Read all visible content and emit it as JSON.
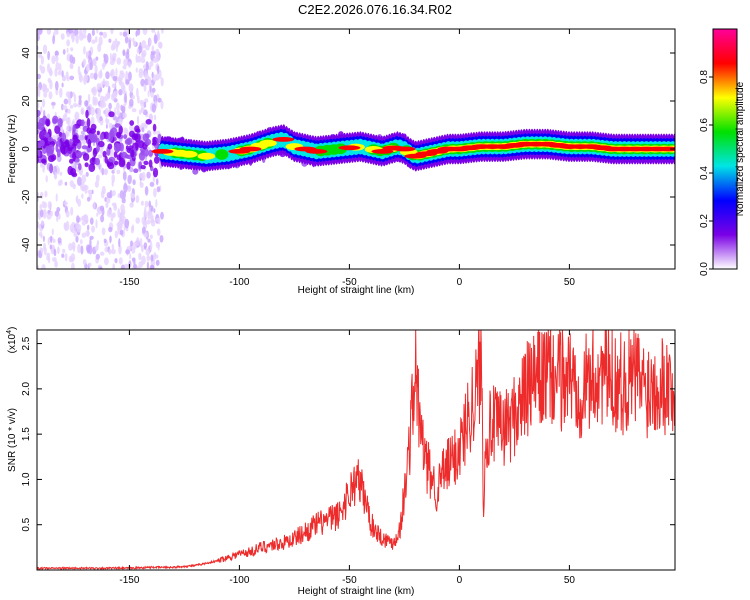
{
  "title": "C2E2.2026.076.16.34.R02",
  "chart_data": [
    {
      "type": "heatmap",
      "xlabel": "Height of straight line (km)",
      "ylabel": "Frequency (Hz)",
      "xlim": [
        -192,
        98
      ],
      "ylim": [
        -50,
        50
      ],
      "xticks": [
        -150,
        -100,
        -50,
        0,
        50
      ],
      "yticks": [
        -40,
        -20,
        0,
        20,
        40
      ],
      "colorbar": {
        "label": "Normalized spectral amplitude",
        "range": [
          0.0,
          1.0
        ],
        "ticks": [
          0.0,
          0.2,
          0.4,
          0.6,
          0.8
        ],
        "colormap": [
          "#ffffff",
          "#7a00e6",
          "#0000ff",
          "#00e5e5",
          "#00e000",
          "#ffff00",
          "#ff0000",
          "#ff0099"
        ]
      },
      "ridge": {
        "x": [
          -192,
          -170,
          -150,
          -135,
          -125,
          -115,
          -105,
          -95,
          -85,
          -80,
          -75,
          -65,
          -55,
          -45,
          -35,
          -28,
          -25,
          -22,
          -20,
          -15,
          -10,
          -5,
          0,
          10,
          20,
          30,
          40,
          50,
          60,
          70,
          80,
          90,
          98
        ],
        "y": [
          3,
          2,
          2,
          -1,
          -2,
          -3,
          -2,
          0,
          3,
          4,
          1,
          -1,
          0,
          1,
          -1,
          1,
          0,
          -2,
          -3,
          -2,
          -1,
          0,
          0,
          1,
          1,
          2,
          2,
          1,
          1,
          0,
          0,
          0,
          0
        ]
      }
    },
    {
      "type": "line",
      "xlabel": "Height of straight line (km)",
      "ylabel": "SNR (10 * v/v)",
      "multiplier_label": "(x10",
      "multiplier_exp": "4",
      "multiplier_close": ")",
      "color": "#ee2b2b",
      "xlim": [
        -192,
        98
      ],
      "ylim": [
        0,
        2.65
      ],
      "xticks": [
        -150,
        -100,
        -50,
        0,
        50
      ],
      "yticks": [
        0.5,
        1.0,
        1.5,
        2.0,
        2.5
      ],
      "series": [
        {
          "x": [
            -192,
            -180,
            -170,
            -160,
            -150,
            -140,
            -130,
            -120,
            -110,
            -100,
            -95,
            -90,
            -85,
            -80,
            -75,
            -70,
            -65,
            -60,
            -55,
            -50,
            -47,
            -45,
            -42,
            -40,
            -35,
            -30,
            -27,
            -24,
            -22,
            -20,
            -18,
            -15,
            -12,
            -10,
            -8,
            -5,
            -2,
            0,
            2,
            5,
            8,
            10,
            11,
            12,
            15,
            20,
            25,
            30,
            35,
            40,
            45,
            50,
            55,
            60,
            65,
            70,
            75,
            80,
            85,
            90,
            95,
            98
          ],
          "y": [
            0.02,
            0.02,
            0.02,
            0.02,
            0.02,
            0.03,
            0.03,
            0.05,
            0.1,
            0.18,
            0.2,
            0.25,
            0.28,
            0.3,
            0.35,
            0.42,
            0.5,
            0.55,
            0.6,
            0.85,
            1.0,
            0.95,
            0.7,
            0.5,
            0.35,
            0.3,
            0.45,
            1.05,
            1.6,
            2.2,
            1.6,
            1.15,
            1.0,
            0.85,
            1.05,
            1.15,
            1.25,
            1.35,
            1.5,
            1.8,
            2.0,
            2.35,
            0.7,
            1.5,
            1.6,
            1.55,
            1.7,
            1.95,
            2.1,
            2.15,
            2.1,
            2.15,
            2.0,
            2.1,
            2.2,
            2.1,
            2.05,
            2.15,
            2.0,
            2.1,
            2.05,
            1.95
          ]
        }
      ]
    }
  ]
}
